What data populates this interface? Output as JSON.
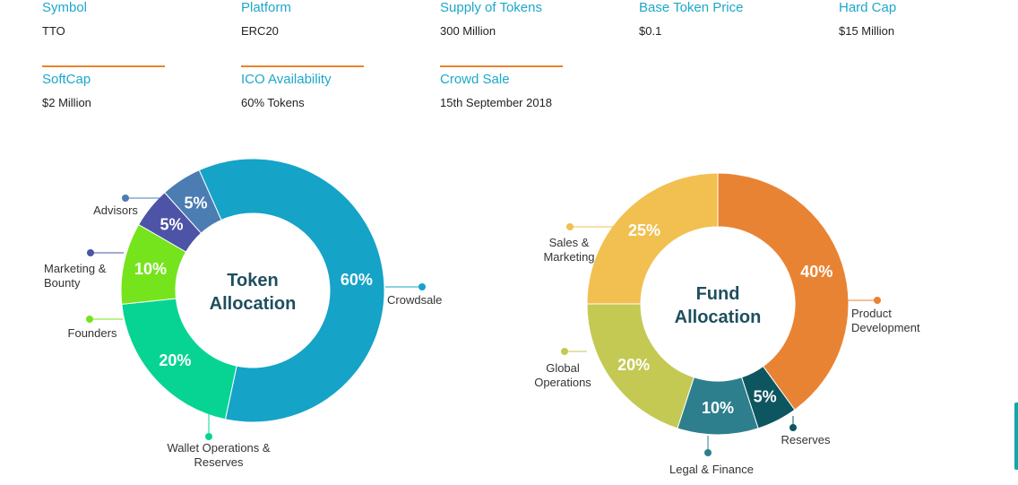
{
  "stats": [
    {
      "label": "Symbol",
      "value": "TTO"
    },
    {
      "label": "Platform",
      "value": "ERC20"
    },
    {
      "label": "Supply of Tokens",
      "value": "300 Million"
    },
    {
      "label": "Base Token Price",
      "value": "$0.1"
    },
    {
      "label": "Hard Cap",
      "value": "$15 Million"
    },
    {
      "label": "SoftCap",
      "value": "$2 Million"
    },
    {
      "label": "ICO Availability",
      "value": "60% Tokens"
    },
    {
      "label": "Crowd Sale",
      "value": "15th September 2018"
    }
  ],
  "chart_data": [
    {
      "type": "pie",
      "title": "Token Allocation",
      "title_lines": [
        "Token",
        "Allocation"
      ],
      "categories": [
        "Crowdsale",
        "Wallet Operations & Reserves",
        "Founders",
        "Marketing & Bounty",
        "Advisors"
      ],
      "label_lines": [
        [
          "Crowdsale"
        ],
        [
          "Wallet Operations &",
          "Reserves"
        ],
        [
          "Founders"
        ],
        [
          "Marketing &",
          "Bounty"
        ],
        [
          "Advisors"
        ]
      ],
      "values": [
        60,
        20,
        10,
        5,
        5
      ],
      "value_labels": [
        "60%",
        "20%",
        "10%",
        "5%",
        "5%"
      ],
      "colors": [
        "#15a3c8",
        "#07d493",
        "#76e41c",
        "#4d53a6",
        "#4b7db3"
      ],
      "legend": "callouts around the ring"
    },
    {
      "type": "pie",
      "title": "Fund Allocation",
      "title_lines": [
        "Fund",
        "Allocation"
      ],
      "categories": [
        "Product Development",
        "Reserves",
        "Legal & Finance",
        "Global Operations",
        "Sales & Marketing"
      ],
      "label_lines": [
        [
          "Product",
          "Development"
        ],
        [
          "Reserves"
        ],
        [
          "Legal & Finance"
        ],
        [
          "Global",
          "Operations"
        ],
        [
          "Sales &",
          "Marketing"
        ]
      ],
      "values": [
        40,
        5,
        10,
        20,
        25
      ],
      "value_labels": [
        "40%",
        "5%",
        "10%",
        "20%",
        "25%"
      ],
      "colors": [
        "#e98334",
        "#0d5660",
        "#2e7f8d",
        "#c3c953",
        "#f2c050"
      ],
      "legend": "callouts around the ring"
    }
  ]
}
